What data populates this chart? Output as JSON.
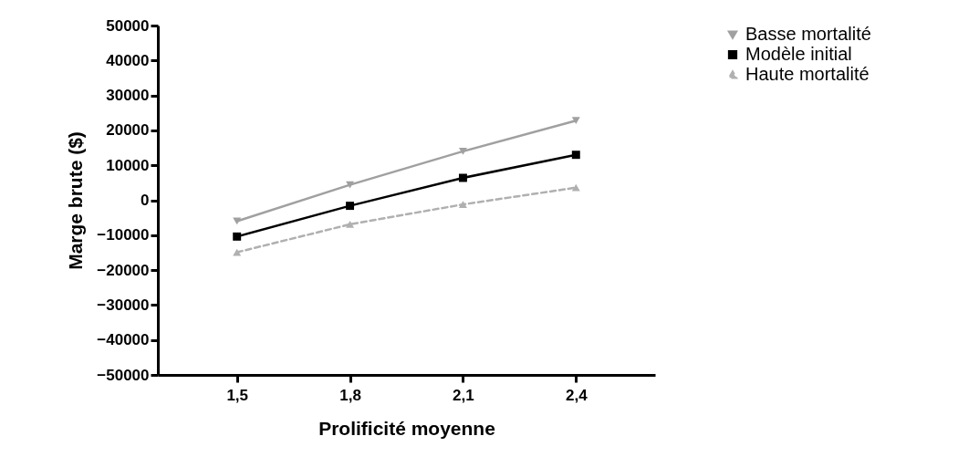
{
  "chart_data": {
    "type": "line",
    "xlabel": "Prolificité moyenne",
    "ylabel": "Marge brute ($)",
    "categories": [
      "1,5",
      "1,8",
      "2,1",
      "2,4"
    ],
    "series": [
      {
        "name": "Basse mortalité",
        "color": "#a0a0a0",
        "marker": "triangle-down",
        "line_style": "solid",
        "values": [
          -6000,
          4400,
          14000,
          22800
        ]
      },
      {
        "name": "Modèle initial",
        "color": "#000000",
        "marker": "square",
        "line_style": "solid",
        "values": [
          -10400,
          -1600,
          6400,
          13000
        ]
      },
      {
        "name": "Haute mortalité",
        "color": "#b0b0b0",
        "marker": "triangle",
        "line_style": "dashed",
        "values": [
          -14900,
          -6900,
          -1200,
          3600
        ]
      }
    ],
    "ylim": [
      -50000,
      50000
    ],
    "yticks": [
      -50000,
      -40000,
      -30000,
      -20000,
      -10000,
      0,
      10000,
      20000,
      30000,
      40000,
      50000
    ],
    "grid": false,
    "legend": "right"
  }
}
